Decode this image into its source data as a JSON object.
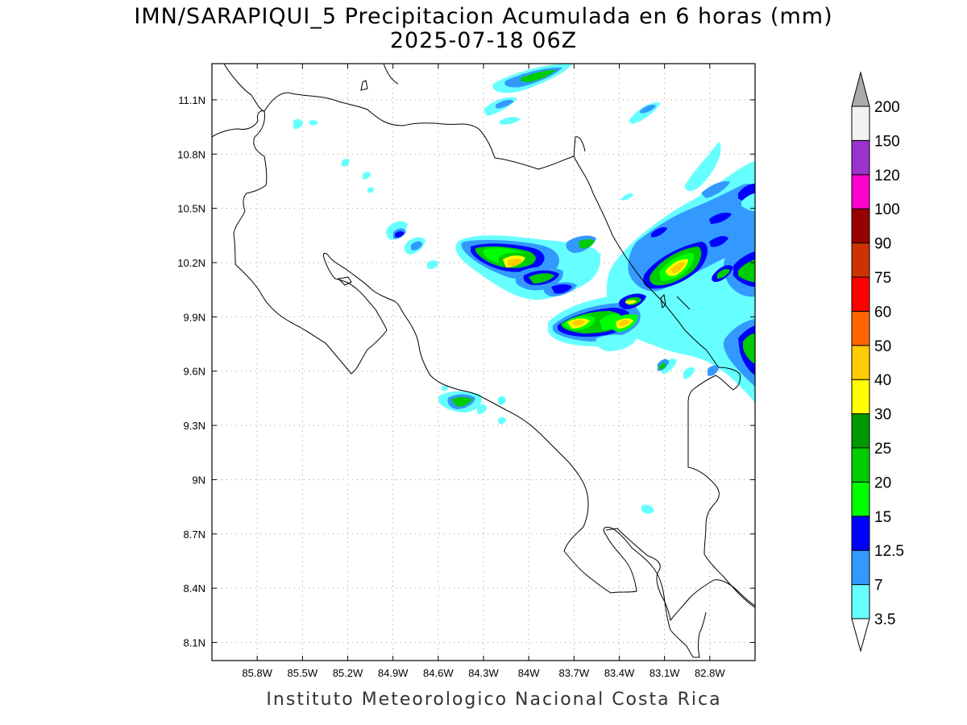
{
  "title": {
    "line1": "IMN/SARAPIQUI_5 Precipitacion Acumulada en 6 horas (mm)",
    "line2": "2025-07-18 06Z"
  },
  "footer": "Instituto Meteorologico Nacional Costa Rica",
  "map": {
    "lon_range": [
      -86.1,
      -82.5
    ],
    "lat_range": [
      8.0,
      11.3
    ],
    "lon_ticks": [
      {
        "value": -85.8,
        "label": "85.8W"
      },
      {
        "value": -85.5,
        "label": "85.5W"
      },
      {
        "value": -85.2,
        "label": "85.2W"
      },
      {
        "value": -84.9,
        "label": "84.9W"
      },
      {
        "value": -84.6,
        "label": "84.6W"
      },
      {
        "value": -84.3,
        "label": "84.3W"
      },
      {
        "value": -84.0,
        "label": "84W"
      },
      {
        "value": -83.7,
        "label": "83.7W"
      },
      {
        "value": -83.4,
        "label": "83.4W"
      },
      {
        "value": -83.1,
        "label": "83.1W"
      },
      {
        "value": -82.8,
        "label": "82.8W"
      }
    ],
    "lat_ticks": [
      {
        "value": 8.1,
        "label": "8.1N"
      },
      {
        "value": 8.4,
        "label": "8.4N"
      },
      {
        "value": 8.7,
        "label": "8.7N"
      },
      {
        "value": 9.0,
        "label": "9N"
      },
      {
        "value": 9.3,
        "label": "9.3N"
      },
      {
        "value": 9.6,
        "label": "9.6N"
      },
      {
        "value": 9.9,
        "label": "9.9N"
      },
      {
        "value": 10.2,
        "label": "10.2N"
      },
      {
        "value": 10.5,
        "label": "10.5N"
      },
      {
        "value": 10.8,
        "label": "10.8N"
      },
      {
        "value": 11.1,
        "label": "11.1N"
      }
    ],
    "grid": true,
    "colorbar": {
      "levels": [
        "3.5",
        "7",
        "12.5",
        "15",
        "20",
        "25",
        "30",
        "40",
        "50",
        "60",
        "75",
        "90",
        "100",
        "120",
        "150",
        "200"
      ],
      "colors": [
        "#66ffff",
        "#3399ff",
        "#0000ff",
        "#00ff00",
        "#00cc00",
        "#009900",
        "#ffff00",
        "#ffcc00",
        "#ff6600",
        "#ff0000",
        "#cc3300",
        "#990000",
        "#ff00cc",
        "#9933cc",
        "#f2f2f2"
      ],
      "under_color": "#ffffff",
      "over_color": "#aaaaaa"
    }
  }
}
